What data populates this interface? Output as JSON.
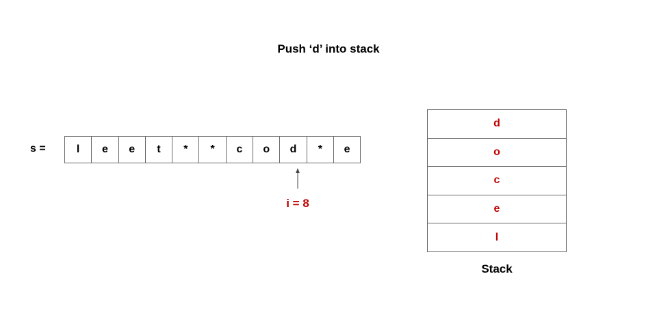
{
  "title": "Push ‘d’ into stack",
  "array": {
    "label": "s =",
    "cells": [
      "l",
      "e",
      "e",
      "t",
      "*",
      "*",
      "c",
      "o",
      "d",
      "*",
      "e"
    ],
    "pointer_index": 8,
    "pointer_label": "i = 8"
  },
  "stack": {
    "items_top_to_bottom": [
      "d",
      "o",
      "c",
      "e",
      "l"
    ],
    "label": "Stack"
  },
  "colors": {
    "highlight": "#c00000",
    "text": "#000000",
    "border": "#666666",
    "arrow": "#444444"
  }
}
